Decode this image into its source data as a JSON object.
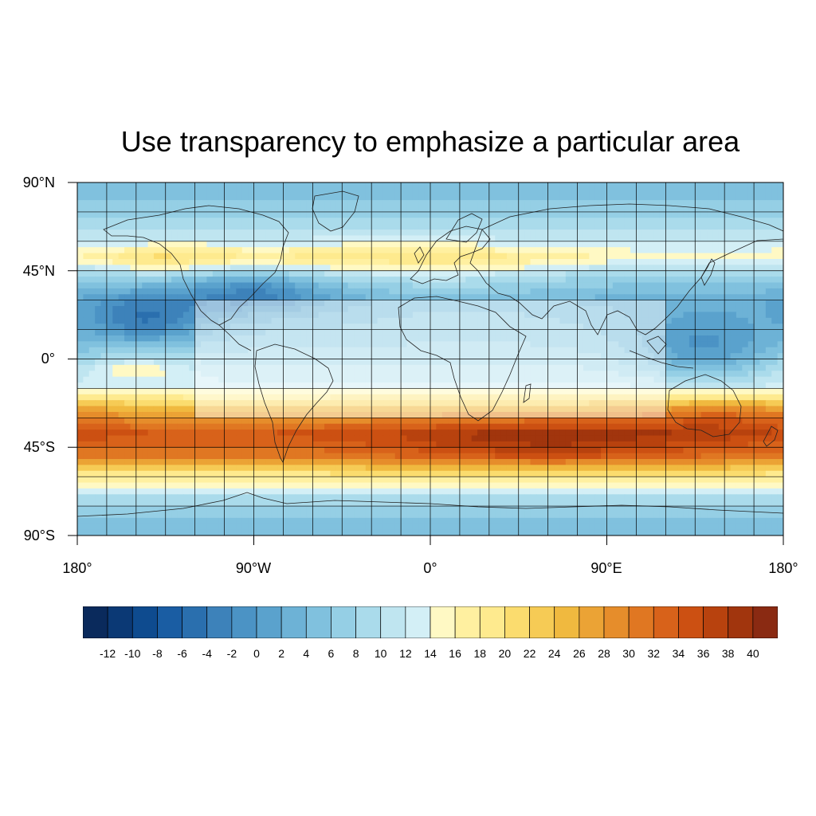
{
  "title": "Use transparency to emphasize a particular area",
  "map": {
    "projection": "cylindrical-equidistant",
    "lon_range": [
      -180,
      180
    ],
    "lat_range": [
      -90,
      90
    ],
    "grid_spacing_deg": 15,
    "coastlines": true,
    "emphasized_area": {
      "lon_range": [
        -120,
        120
      ],
      "lat_range": [
        -30,
        30
      ],
      "overlay_color": "#ffffff",
      "overlay_opacity": 0.45
    },
    "lat_labels": [
      "90°N",
      "45°N",
      "0°",
      "45°S",
      "90°S"
    ],
    "lon_labels": [
      "180°",
      "90°W",
      "0°",
      "90°E",
      "180°"
    ]
  },
  "colorbar": {
    "labels": [
      "-12",
      "-10",
      "-8",
      "-6",
      "-4",
      "-2",
      "0",
      "2",
      "4",
      "6",
      "8",
      "10",
      "12",
      "14",
      "16",
      "18",
      "20",
      "22",
      "24",
      "26",
      "28",
      "30",
      "32",
      "34",
      "36",
      "38",
      "40"
    ],
    "colors": [
      "#0a2a5c",
      "#0b3975",
      "#0e4b8f",
      "#1a5da3",
      "#2a6fae",
      "#3d82ba",
      "#4b93c5",
      "#5aa2cd",
      "#6db2d6",
      "#80c1de",
      "#95cfe5",
      "#aadbeb",
      "#bfe5f0",
      "#d3eff6",
      "#fff9c4",
      "#fff0a0",
      "#feea8e",
      "#fbdc6e",
      "#f6cb55",
      "#f0b93f",
      "#eba335",
      "#e68d2b",
      "#e07722",
      "#d8621a",
      "#cc5012",
      "#b8420e",
      "#a1350d",
      "#8a2a12"
    ]
  },
  "chart_data": {
    "type": "heatmap",
    "title": "Use transparency to emphasize a particular area",
    "xlabel": "",
    "ylabel": "",
    "xlim": [
      -180,
      180
    ],
    "ylim": [
      -90,
      90
    ],
    "levels": [
      -12,
      -10,
      -8,
      -6,
      -4,
      -2,
      0,
      2,
      4,
      6,
      8,
      10,
      12,
      14,
      16,
      18,
      20,
      22,
      24,
      26,
      28,
      30,
      32,
      34,
      36,
      38,
      40
    ],
    "approx_zonal_profile": [
      {
        "lat": 85,
        "value": 5
      },
      {
        "lat": 75,
        "value": 7
      },
      {
        "lat": 65,
        "value": 10
      },
      {
        "lat": 52,
        "value": 15
      },
      {
        "lat": 42,
        "value": 7
      },
      {
        "lat": 30,
        "value": 3
      },
      {
        "lat": 15,
        "value": 6
      },
      {
        "lat": 0,
        "value": 9
      },
      {
        "lat": -15,
        "value": 13
      },
      {
        "lat": -25,
        "value": 24
      },
      {
        "lat": -38,
        "value": 34
      },
      {
        "lat": -50,
        "value": 30
      },
      {
        "lat": -60,
        "value": 18
      },
      {
        "lat": -70,
        "value": 10
      },
      {
        "lat": -80,
        "value": 6
      },
      {
        "lat": -88,
        "value": 4
      }
    ]
  }
}
